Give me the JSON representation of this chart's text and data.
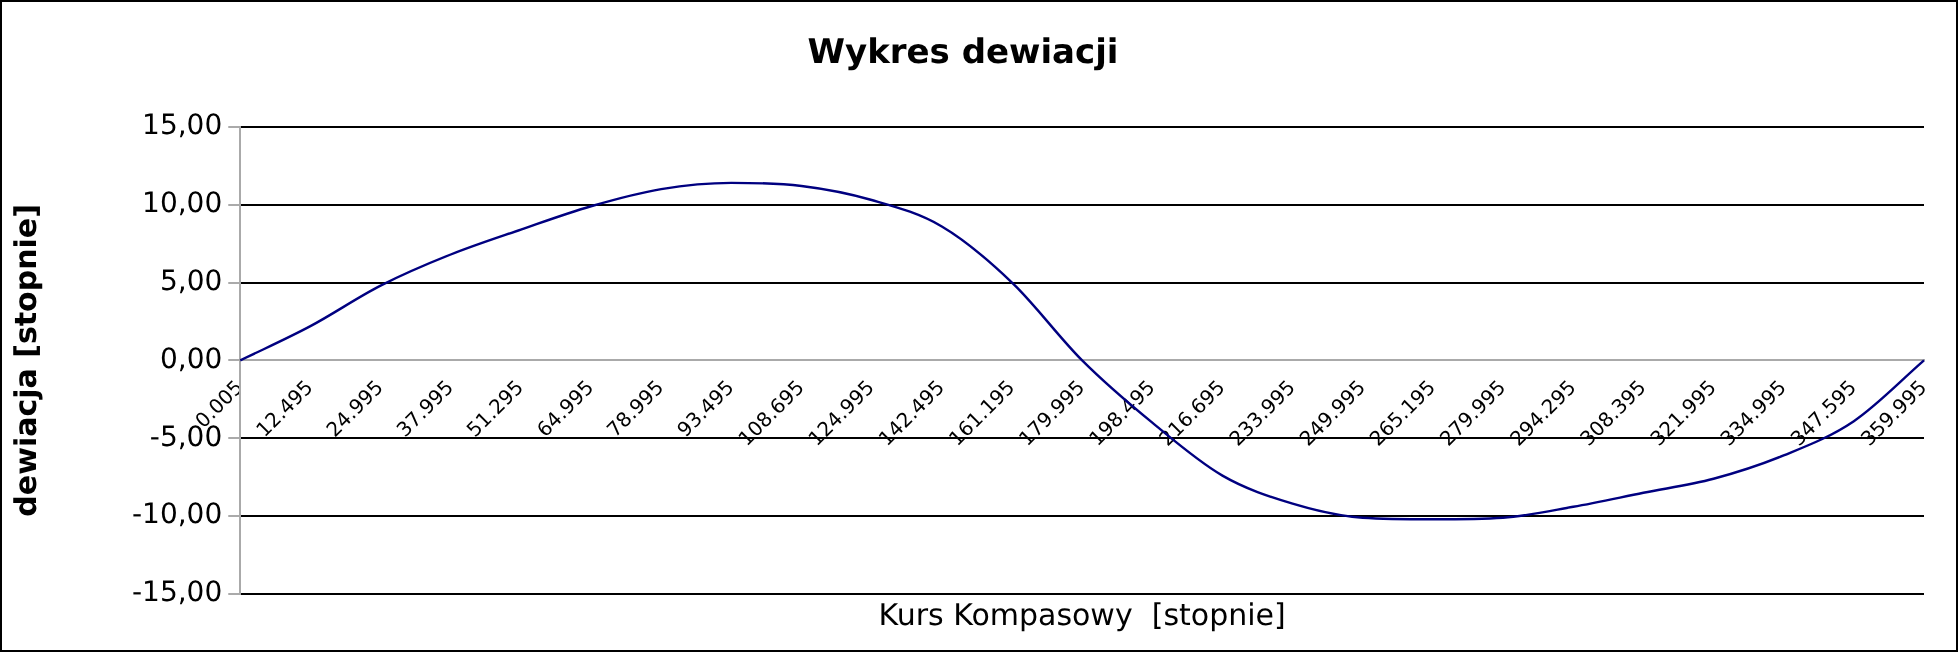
{
  "chart_data": {
    "type": "line",
    "title": "Wykres dewiacji",
    "xlabel": "Kurs Kompasowy  [stopnie]",
    "ylabel": "dewiacja [stopnie]",
    "categories": [
      "0.005",
      "12.495",
      "24.995",
      "37.995",
      "51.295",
      "64.995",
      "78.995",
      "93.495",
      "108.695",
      "124.995",
      "142.495",
      "161.195",
      "179.995",
      "198.495",
      "216.695",
      "233.995",
      "249.995",
      "265.195",
      "279.995",
      "294.295",
      "308.395",
      "321.995",
      "334.995",
      "347.595",
      "359.995"
    ],
    "series": [
      {
        "color": "#000080",
        "values": [
          0,
          2.2,
          4.8,
          6.8,
          8.4,
          9.9,
          11.0,
          11.4,
          11.2,
          10.3,
          8.6,
          5.0,
          0,
          -4.0,
          -7.4,
          -9.2,
          -10.1,
          -10.2,
          -10.1,
          -9.4,
          -8.5,
          -7.6,
          -6.1,
          -3.9,
          0
        ]
      }
    ],
    "ylim": [
      -15,
      15
    ],
    "yticks": [
      {
        "value": -15,
        "label": "-15,00"
      },
      {
        "value": -10,
        "label": "-10,00"
      },
      {
        "value": -5,
        "label": "-5,00"
      },
      {
        "value": 0,
        "label": "0,00"
      },
      {
        "value": 5,
        "label": "5,00"
      },
      {
        "value": 10,
        "label": "10,00"
      },
      {
        "value": 15,
        "label": "15,00"
      }
    ],
    "grid": "y",
    "legend": false,
    "marker": "none",
    "line_style": "solid"
  }
}
